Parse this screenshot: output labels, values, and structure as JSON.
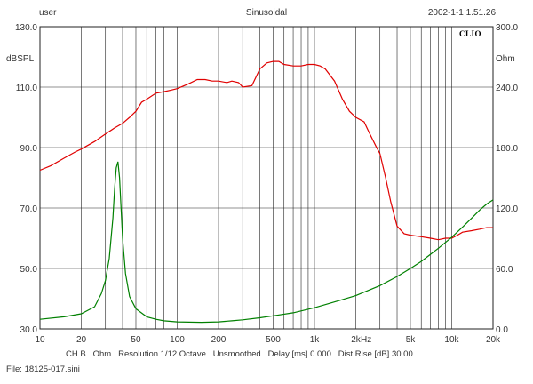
{
  "header": {
    "user": "user",
    "title": "Sinusoidal",
    "datetime": "2002-1-1 1.51.26"
  },
  "footer": {
    "settings": "CH B   Ohm   Resolution 1/12 Octave   Unsmoothed   Delay [ms] 0.000   Dist Rise [dB] 30.00",
    "file": "File: 18125-017.sini"
  },
  "chart_data": {
    "type": "line",
    "brand": "CLIO",
    "x_scale": "log",
    "xlim": [
      10,
      20000
    ],
    "x_ticks": [
      {
        "v": 10,
        "label": "10"
      },
      {
        "v": 20,
        "label": "20"
      },
      {
        "v": 50,
        "label": "50"
      },
      {
        "v": 100,
        "label": "100"
      },
      {
        "v": 200,
        "label": "200"
      },
      {
        "v": 500,
        "label": "500"
      },
      {
        "v": 1000,
        "label": "1k"
      },
      {
        "v": 2000,
        "label": "2k"
      },
      {
        "v": 5000,
        "label": "5k"
      },
      {
        "v": 10000,
        "label": "10k"
      },
      {
        "v": 20000,
        "label": "20k"
      }
    ],
    "x_unit_label": "Hz",
    "y_left": {
      "label": "dBSPL",
      "lim": [
        30,
        130
      ],
      "ticks": [
        "30.0",
        "50.0",
        "70.0",
        "90.0",
        "110.0",
        "130.0"
      ]
    },
    "y_right": {
      "label": "Ohm",
      "lim": [
        0,
        300
      ],
      "ticks": [
        "0.0",
        "60.0",
        "120.0",
        "180.0",
        "240.0",
        "300.0"
      ]
    },
    "grid": true,
    "colors": {
      "spl": "#e00000",
      "impedance": "#008000",
      "grid": "#222222"
    },
    "series": [
      {
        "axis": "left",
        "points": [
          [
            10,
            82.5
          ],
          [
            12,
            84
          ],
          [
            15,
            86.5
          ],
          [
            18,
            88.5
          ],
          [
            20,
            89.5
          ],
          [
            25,
            92
          ],
          [
            30,
            94.5
          ],
          [
            35,
            96.5
          ],
          [
            40,
            98
          ],
          [
            45,
            100
          ],
          [
            50,
            102
          ],
          [
            55,
            105
          ],
          [
            60,
            106
          ],
          [
            70,
            108
          ],
          [
            80,
            108.5
          ],
          [
            90,
            109
          ],
          [
            100,
            109.5
          ],
          [
            120,
            111
          ],
          [
            140,
            112.5
          ],
          [
            160,
            112.5
          ],
          [
            180,
            112
          ],
          [
            200,
            112
          ],
          [
            230,
            111.5
          ],
          [
            250,
            112
          ],
          [
            280,
            111.5
          ],
          [
            300,
            110
          ],
          [
            350,
            110.5
          ],
          [
            400,
            116
          ],
          [
            450,
            118
          ],
          [
            500,
            118.5
          ],
          [
            550,
            118.5
          ],
          [
            600,
            117.5
          ],
          [
            700,
            117
          ],
          [
            800,
            117
          ],
          [
            900,
            117.5
          ],
          [
            1000,
            117.5
          ],
          [
            1100,
            117
          ],
          [
            1200,
            116
          ],
          [
            1400,
            112
          ],
          [
            1600,
            106
          ],
          [
            1800,
            102
          ],
          [
            2000,
            100
          ],
          [
            2300,
            98.5
          ],
          [
            2500,
            95
          ],
          [
            2800,
            90.5
          ],
          [
            3000,
            88
          ],
          [
            3300,
            80
          ],
          [
            3600,
            72
          ],
          [
            4000,
            64
          ],
          [
            4500,
            61.5
          ],
          [
            5000,
            61
          ],
          [
            6000,
            60.5
          ],
          [
            7000,
            60
          ],
          [
            8000,
            59.5
          ],
          [
            9000,
            60
          ],
          [
            10000,
            60
          ],
          [
            11000,
            61
          ],
          [
            12000,
            62
          ],
          [
            14000,
            62.5
          ],
          [
            16000,
            63
          ],
          [
            18000,
            63.5
          ],
          [
            20000,
            63.5
          ]
        ]
      },
      {
        "axis": "right",
        "points": [
          [
            10,
            9.5
          ],
          [
            15,
            12
          ],
          [
            20,
            15
          ],
          [
            25,
            22
          ],
          [
            28,
            35
          ],
          [
            30,
            48
          ],
          [
            32,
            70
          ],
          [
            34,
            110
          ],
          [
            35,
            140
          ],
          [
            36,
            160
          ],
          [
            37,
            166
          ],
          [
            38,
            150
          ],
          [
            39,
            120
          ],
          [
            40,
            90
          ],
          [
            42,
            55
          ],
          [
            45,
            32
          ],
          [
            50,
            20
          ],
          [
            60,
            12
          ],
          [
            70,
            9.5
          ],
          [
            80,
            8
          ],
          [
            100,
            7
          ],
          [
            150,
            6.5
          ],
          [
            200,
            7
          ],
          [
            250,
            8
          ],
          [
            300,
            9
          ],
          [
            400,
            11
          ],
          [
            500,
            13
          ],
          [
            700,
            16
          ],
          [
            1000,
            21
          ],
          [
            1500,
            28
          ],
          [
            2000,
            33
          ],
          [
            3000,
            43
          ],
          [
            4000,
            52
          ],
          [
            5000,
            60
          ],
          [
            6000,
            67
          ],
          [
            7000,
            74
          ],
          [
            8000,
            80
          ],
          [
            10000,
            91
          ],
          [
            12000,
            101
          ],
          [
            14000,
            110
          ],
          [
            16000,
            118
          ],
          [
            18000,
            124
          ],
          [
            20000,
            128
          ]
        ]
      }
    ]
  }
}
